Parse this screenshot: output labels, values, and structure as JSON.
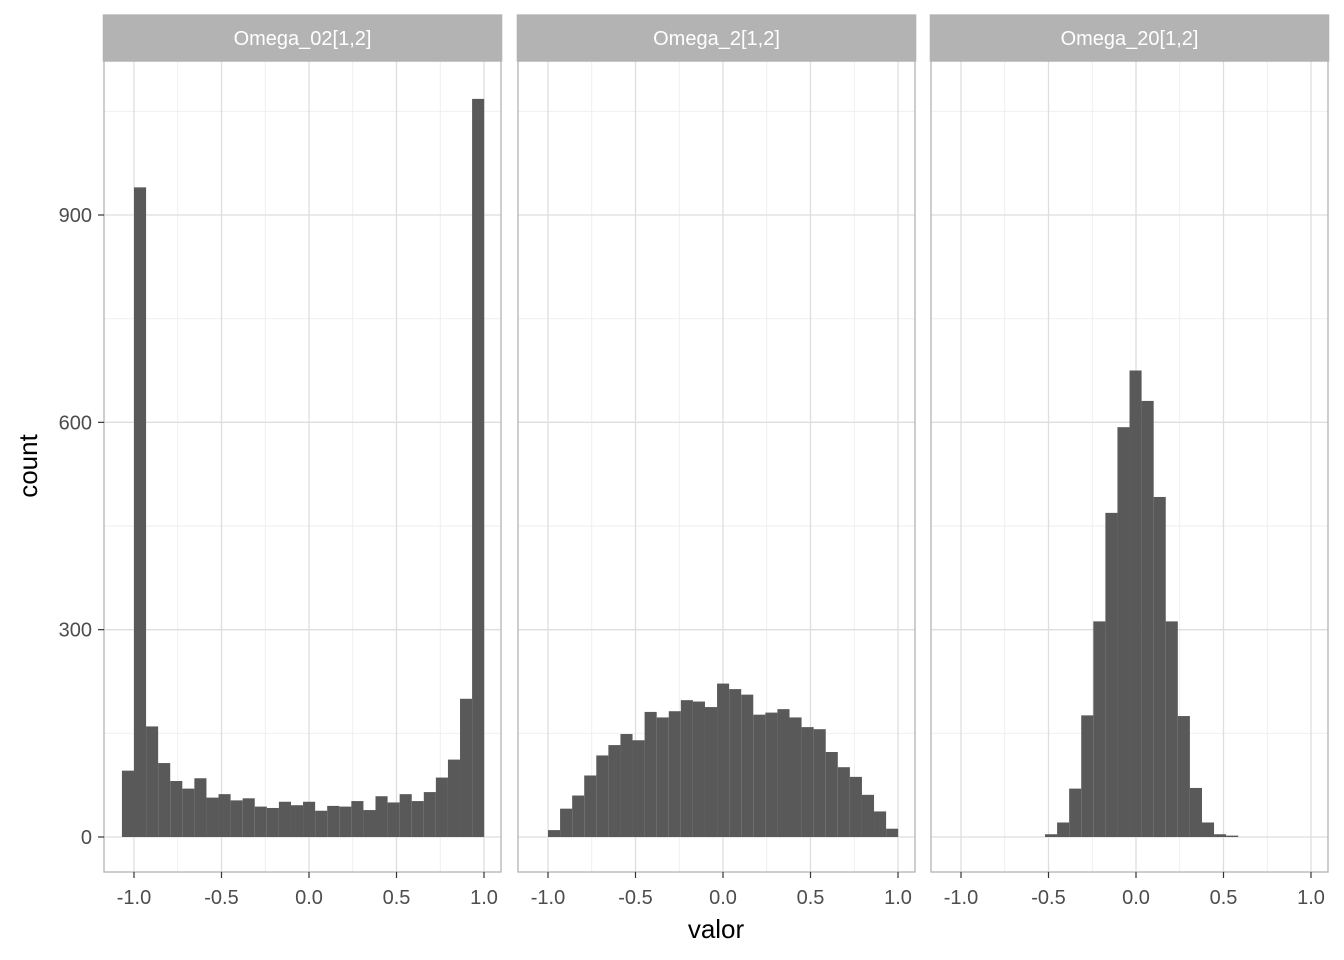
{
  "chart_data": {
    "type": "bar",
    "subtype": "histogram",
    "xlabel": "valor",
    "ylabel": "count",
    "xlim": [
      -1.1,
      1.1
    ],
    "ylim": [
      -50,
      1100
    ],
    "x_ticks": [
      -1.0,
      -0.5,
      0.0,
      0.5,
      1.0
    ],
    "x_tick_labels": [
      "-1.0",
      "-0.5",
      "0.0",
      "0.5",
      "1.0"
    ],
    "y_ticks": [
      0,
      300,
      600,
      900
    ],
    "y_tick_labels": [
      "0",
      "300",
      "600",
      "900"
    ],
    "grid": true,
    "theme": "light",
    "colors": {
      "bar": "#595959",
      "strip": "#b3b3b3",
      "panel_border": "#b3b3b3",
      "grid_major": "#dedede",
      "grid_minor": "#ededed"
    },
    "binwidth": 0.069,
    "panels": [
      {
        "strip": "Omega_02[1,2]",
        "bin_start": -1.069,
        "values": [
          96,
          940,
          160,
          107,
          81,
          70,
          85,
          57,
          62,
          53,
          56,
          44,
          42,
          51,
          46,
          51,
          38,
          45,
          44,
          52,
          39,
          59,
          50,
          62,
          52,
          65,
          86,
          112,
          200,
          1068
        ]
      },
      {
        "strip": "Omega_2[1,2]",
        "bin_start": -1.0,
        "values": [
          10,
          41,
          60,
          89,
          118,
          133,
          149,
          140,
          181,
          173,
          182,
          198,
          196,
          188,
          222,
          214,
          206,
          177,
          180,
          185,
          173,
          159,
          156,
          123,
          101,
          87,
          61,
          37,
          12
        ]
      },
      {
        "strip": "Omega_20[1,2]",
        "bin_start": -0.52,
        "values": [
          4,
          21,
          70,
          176,
          312,
          469,
          593,
          675,
          631,
          492,
          312,
          175,
          71,
          21,
          4,
          2
        ]
      }
    ]
  }
}
